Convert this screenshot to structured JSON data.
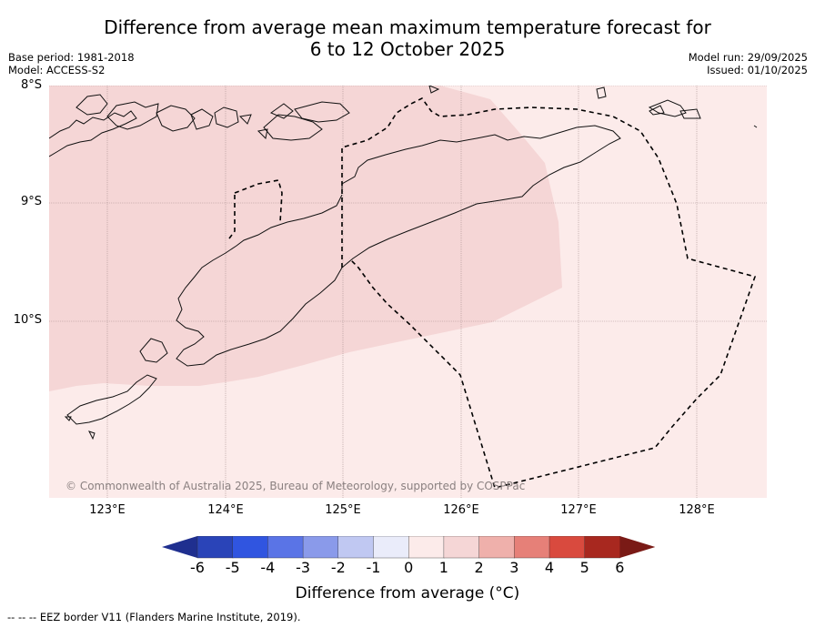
{
  "title_line1": "Difference from average mean maximum temperature forecast for",
  "title_line2": "6 to 12 October 2025",
  "base_period": "Base period: 1981-2018",
  "model": "Model: ACCESS-S2",
  "model_run": "Model run: 29/09/2025",
  "issued": "Issued: 01/10/2025",
  "copyright": "© Commonwealth of Australia 2025, Bureau of Meteorology, supported by COSPPac",
  "lat_ticks": [
    "8°S",
    "9°S",
    "10°S"
  ],
  "lon_ticks": [
    "123°E",
    "124°E",
    "125°E",
    "126°E",
    "127°E",
    "128°E"
  ],
  "colorbar": {
    "title": "Difference from average (°C)",
    "labels": [
      "-6",
      "-5",
      "-4",
      "-3",
      "-2",
      "-1",
      "0",
      "1",
      "2",
      "3",
      "4",
      "5",
      "6"
    ],
    "colors": [
      "#1f2f8f",
      "#2a44b8",
      "#3055e0",
      "#5a74e6",
      "#8a9aea",
      "#c0c8f2",
      "#eaecfa",
      "#fcebea",
      "#f5d6d6",
      "#efb0ab",
      "#e68078",
      "#d94a3e",
      "#a8281f",
      "#7a1a16"
    ]
  },
  "footnote": "--  --  -- EEZ border V11 (Flanders Marine Institute, 2019).",
  "chart_data": {
    "type": "map",
    "region": {
      "lon": [
        122.5,
        128.6
      ],
      "lat": [
        -11.5,
        -8.0
      ]
    },
    "categories": [
      {
        "range": "0 to 1 °C",
        "color": "#fcebea"
      },
      {
        "range": "1 to 2 °C",
        "color": "#f5d6d6"
      }
    ]
  }
}
